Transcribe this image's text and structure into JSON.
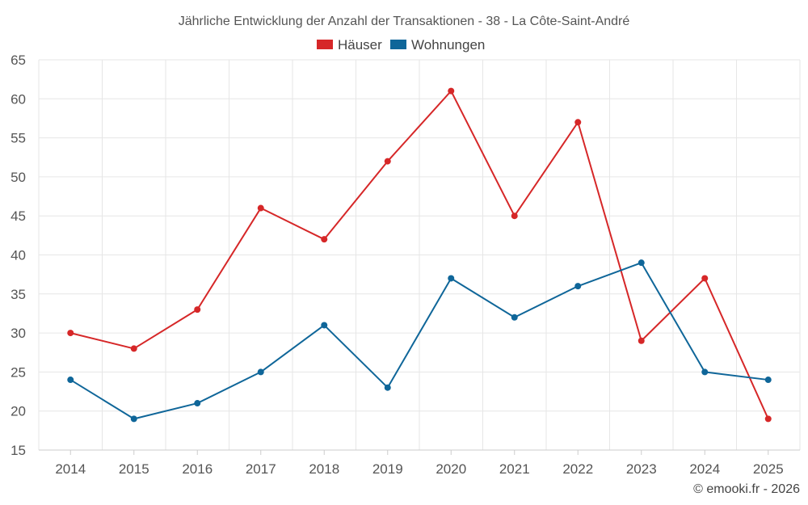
{
  "chart_data": {
    "type": "line",
    "title": "Jährliche Entwicklung der Anzahl der Transaktionen - 38 - La Côte-Saint-André",
    "categories": [
      "2014",
      "2015",
      "2016",
      "2017",
      "2018",
      "2019",
      "2020",
      "2021",
      "2022",
      "2023",
      "2024",
      "2025"
    ],
    "series": [
      {
        "name": "Häuser",
        "color": "#d62728",
        "values": [
          30,
          28,
          33,
          46,
          42,
          52,
          61,
          45,
          57,
          29,
          37,
          19
        ]
      },
      {
        "name": "Wohnungen",
        "color": "#0f6699",
        "values": [
          24,
          19,
          21,
          25,
          31,
          23,
          37,
          32,
          36,
          39,
          25,
          24
        ]
      }
    ],
    "ylim": [
      15,
      65
    ],
    "yticks": [
      15,
      20,
      25,
      30,
      35,
      40,
      45,
      50,
      55,
      60,
      65
    ],
    "grid": true,
    "legend": "top-center",
    "xlabel": "",
    "ylabel": ""
  },
  "credit": "© emooki.fr - 2026"
}
